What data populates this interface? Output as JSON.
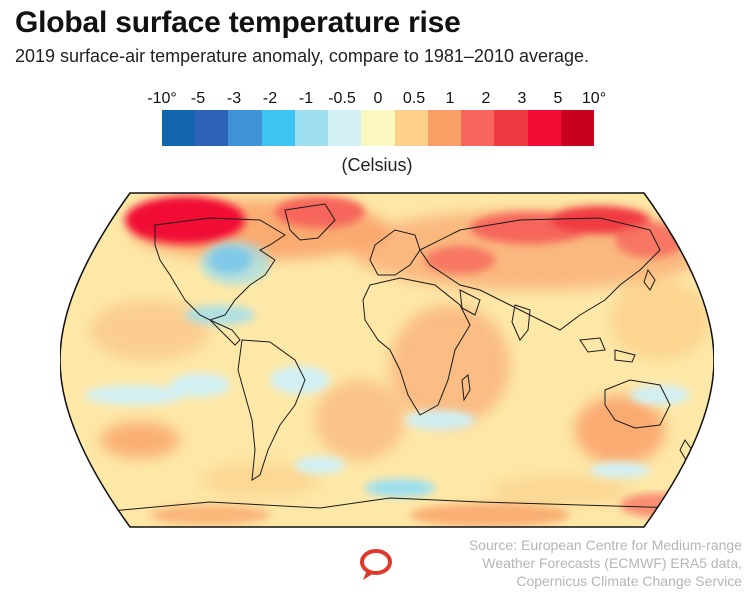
{
  "title": "Global surface temperature rise",
  "subtitle": "2019 surface-air temperature anomaly, compare to 1981–2010 average.",
  "legend": {
    "labels": [
      "-10°",
      "-5",
      "-3",
      "-2",
      "-1",
      "-0.5",
      "0",
      "0.5",
      "1",
      "2",
      "3",
      "5",
      "10°"
    ],
    "colors": [
      "#1366ad",
      "#2c62b8",
      "#3f93d6",
      "#3cc5f0",
      "#9ddff0",
      "#d2eff3",
      "#fbf7c1",
      "#fcd08a",
      "#f9a067",
      "#f6665c",
      "#f03a42",
      "#f10b35",
      "#c8001e"
    ],
    "unit": "(Celsius)"
  },
  "map": {
    "projection": "robinson",
    "land_outline_color": "#1a1a1a",
    "background_anomaly_color": "#fde8a8"
  },
  "source": {
    "line1": "Source: European Centre for Medium-range",
    "line2": "Weather Forecasts (ECMWF) ERA5 data,",
    "line3": "Copernicus Climate Change Service"
  },
  "logo_icon": "speech-bubble-icon",
  "logo_color": "#e0392b"
}
